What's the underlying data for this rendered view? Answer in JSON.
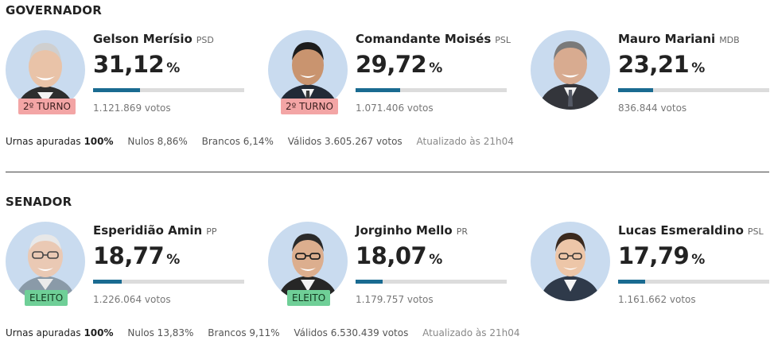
{
  "governador": {
    "title": "GOVERNADOR",
    "candidates": [
      {
        "name": "Gelson Merísio",
        "party": "PSD",
        "pct": "31,12",
        "pct_symbol": "%",
        "share": 0.3112,
        "votes": "1.121.869 votos",
        "tag": "2º TURNO"
      },
      {
        "name": "Comandante Moisés",
        "party": "PSL",
        "pct": "29,72",
        "pct_symbol": "%",
        "share": 0.2972,
        "votes": "1.071.406 votos",
        "tag": "2º TURNO"
      },
      {
        "name": "Mauro Mariani",
        "party": "MDB",
        "pct": "23,21",
        "pct_symbol": "%",
        "share": 0.2321,
        "votes": "836.844 votos",
        "tag": ""
      }
    ],
    "stats": {
      "urnas_label": "Urnas apuradas",
      "urnas_value": "100%",
      "nulos": "Nulos 8,86%",
      "brancos": "Brancos 6,14%",
      "validos": "Válidos 3.605.267 votos",
      "atualizado": "Atualizado às 21h04"
    }
  },
  "senador": {
    "title": "SENADOR",
    "candidates": [
      {
        "name": "Esperidião Amin",
        "party": "PP",
        "pct": "18,77",
        "pct_symbol": "%",
        "share": 0.1877,
        "votes": "1.226.064 votos",
        "tag": "ELEITO"
      },
      {
        "name": "Jorginho Mello",
        "party": "PR",
        "pct": "18,07",
        "pct_symbol": "%",
        "share": 0.1807,
        "votes": "1.179.757 votos",
        "tag": "ELEITO"
      },
      {
        "name": "Lucas Esmeraldino",
        "party": "PSL",
        "pct": "17,79",
        "pct_symbol": "%",
        "share": 0.1779,
        "votes": "1.161.662 votos",
        "tag": ""
      }
    ],
    "stats": {
      "urnas_label": "Urnas apuradas",
      "urnas_value": "100%",
      "nulos": "Nulos 13,83%",
      "brancos": "Brancos 9,11%",
      "validos": "Válidos 6.530.439 votos",
      "atualizado": "Atualizado às 21h04"
    }
  },
  "colors": {
    "bar_fill": "#1a6b91",
    "bar_track": "#dcdcdc",
    "tag_second_round": "#f3a5a5",
    "tag_elected": "#6fcf97",
    "avatar_bg": "#c9dbef"
  },
  "icons": [
    "candidate-photo-icon"
  ]
}
